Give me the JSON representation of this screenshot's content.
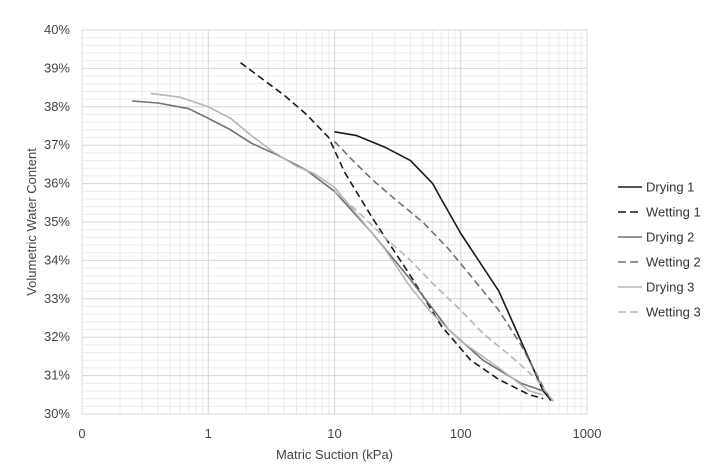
{
  "chart_data": {
    "type": "line",
    "title": "",
    "xlabel": "Matric Suction (kPa)",
    "ylabel": "Volumetric Water Content",
    "x_scale": "log",
    "xlim": [
      0.1,
      1000
    ],
    "ylim": [
      30,
      40
    ],
    "x_tick_labels": [
      "0",
      "1",
      "10",
      "100",
      "1000"
    ],
    "y_tick_labels": [
      "30%",
      "31%",
      "32%",
      "33%",
      "34%",
      "35%",
      "36%",
      "37%",
      "38%",
      "39%",
      "40%"
    ],
    "grid": true,
    "legend_position": "right",
    "series": [
      {
        "name": "Drying 1",
        "color": "#1a1a1a",
        "dash": "solid",
        "points": [
          [
            10,
            37.35
          ],
          [
            15,
            37.25
          ],
          [
            25,
            36.95
          ],
          [
            40,
            36.6
          ],
          [
            60,
            36.0
          ],
          [
            70,
            35.6
          ],
          [
            100,
            34.7
          ],
          [
            200,
            33.2
          ],
          [
            300,
            31.9
          ],
          [
            450,
            30.6
          ],
          [
            520,
            30.35
          ]
        ]
      },
      {
        "name": "Wetting 1",
        "color": "#1a1a1a",
        "dash": "dashed",
        "points": [
          [
            1.8,
            39.15
          ],
          [
            2.5,
            38.8
          ],
          [
            4,
            38.3
          ],
          [
            6,
            37.8
          ],
          [
            9,
            37.2
          ],
          [
            12,
            36.3
          ],
          [
            20,
            35.1
          ],
          [
            40,
            33.6
          ],
          [
            70,
            32.3
          ],
          [
            120,
            31.4
          ],
          [
            200,
            30.9
          ],
          [
            350,
            30.5
          ],
          [
            450,
            30.4
          ]
        ]
      },
      {
        "name": "Drying 2",
        "color": "#707070",
        "dash": "solid",
        "points": [
          [
            0.25,
            38.15
          ],
          [
            0.4,
            38.1
          ],
          [
            0.7,
            37.95
          ],
          [
            1,
            37.7
          ],
          [
            1.5,
            37.4
          ],
          [
            2.2,
            37.05
          ],
          [
            3.5,
            36.75
          ],
          [
            6,
            36.35
          ],
          [
            10,
            35.8
          ],
          [
            20,
            34.7
          ],
          [
            40,
            33.5
          ],
          [
            80,
            32.2
          ],
          [
            150,
            31.4
          ],
          [
            300,
            30.8
          ],
          [
            450,
            30.6
          ]
        ]
      },
      {
        "name": "Wetting 2",
        "color": "#707070",
        "dash": "dashed",
        "points": [
          [
            10,
            37.1
          ],
          [
            14,
            36.6
          ],
          [
            20,
            36.1
          ],
          [
            30,
            35.6
          ],
          [
            50,
            35.0
          ],
          [
            80,
            34.3
          ],
          [
            120,
            33.6
          ],
          [
            200,
            32.7
          ],
          [
            300,
            31.8
          ],
          [
            450,
            30.7
          ],
          [
            500,
            30.45
          ]
        ]
      },
      {
        "name": "Drying 3",
        "color": "#b5b5b5",
        "dash": "solid",
        "points": [
          [
            0.35,
            38.35
          ],
          [
            0.6,
            38.25
          ],
          [
            1,
            38.0
          ],
          [
            1.5,
            37.7
          ],
          [
            2.2,
            37.25
          ],
          [
            3.2,
            36.85
          ],
          [
            5,
            36.45
          ],
          [
            7,
            36.25
          ],
          [
            10,
            35.9
          ],
          [
            15,
            35.2
          ],
          [
            25,
            34.3
          ],
          [
            40,
            33.3
          ],
          [
            60,
            32.6
          ],
          [
            100,
            31.9
          ],
          [
            200,
            31.2
          ],
          [
            350,
            30.6
          ],
          [
            450,
            30.5
          ]
        ]
      },
      {
        "name": "Wetting 3",
        "color": "#b5b5b5",
        "dash": "dashed",
        "points": [
          [
            10,
            35.8
          ],
          [
            15,
            35.3
          ],
          [
            25,
            34.6
          ],
          [
            40,
            34.0
          ],
          [
            60,
            33.4
          ],
          [
            100,
            32.7
          ],
          [
            150,
            32.1
          ],
          [
            250,
            31.5
          ],
          [
            400,
            30.9
          ],
          [
            550,
            30.3
          ]
        ]
      }
    ]
  }
}
